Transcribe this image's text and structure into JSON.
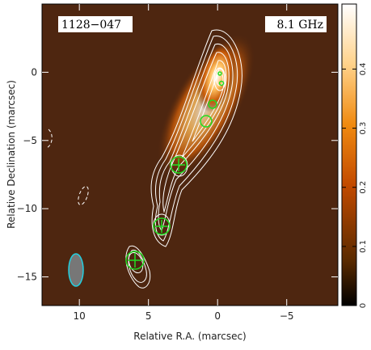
{
  "chart_data": {
    "type": "image",
    "source_label": "1128−047",
    "frequency_label": "8.1 GHz",
    "xlabel": "Relative R.A. (marcsec)",
    "ylabel": "Relative Declination (marcsec)",
    "xlim": [
      12.7,
      -8.7
    ],
    "xticks": [
      10,
      5,
      0,
      {
        "value": -5,
        "label": "−5"
      }
    ],
    "ylim": [
      -17.1,
      5
    ],
    "yticks": [
      0,
      {
        "value": -5,
        "label": "−5"
      },
      {
        "value": -10,
        "label": "−10"
      },
      {
        "value": -15,
        "label": "−15"
      }
    ],
    "clim": [
      0,
      0.51
    ],
    "cticks": [
      0,
      0.1,
      0.2,
      0.3,
      0.4
    ]
  }
}
